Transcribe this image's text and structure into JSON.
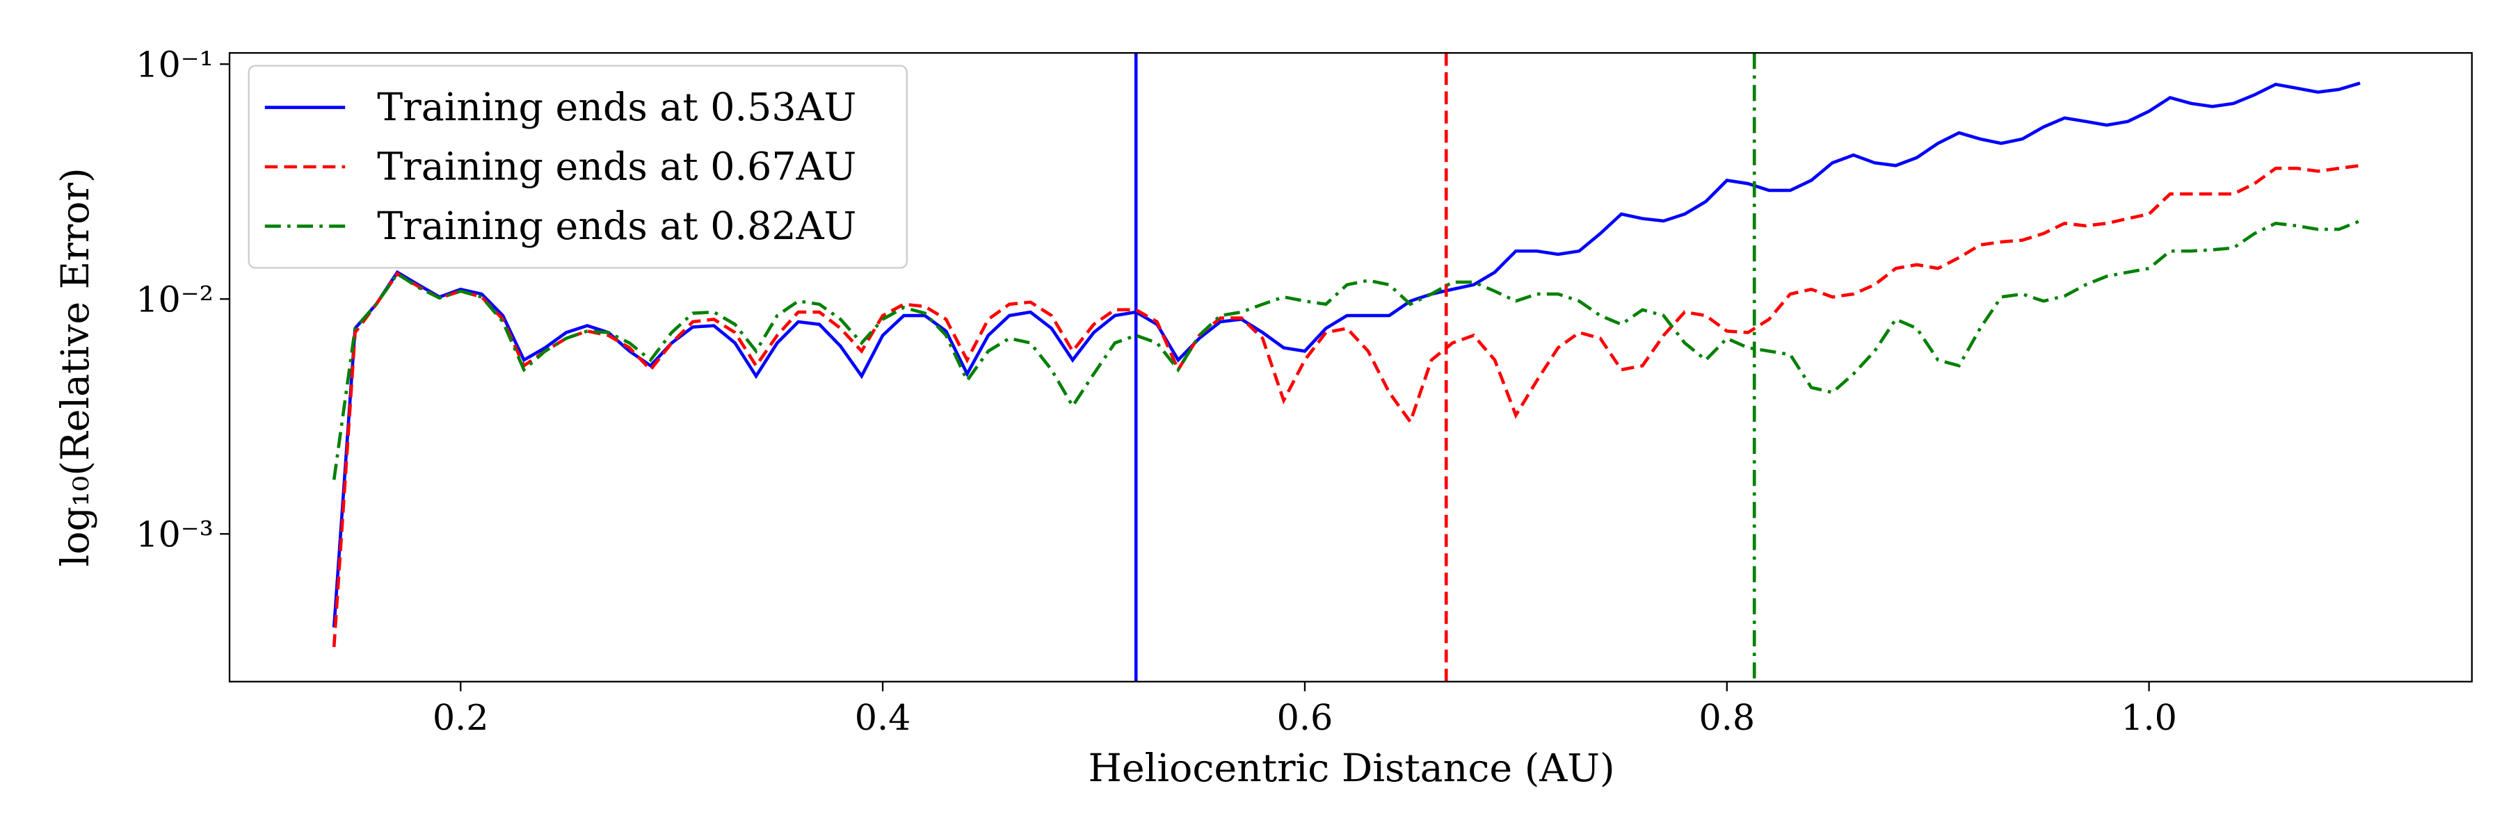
{
  "chart_data": {
    "type": "line",
    "xlabel": "Heliocentric Distance (AU)",
    "ylabel": "log₁₀(Relative Error)",
    "log_y": true,
    "legend": "upper left",
    "xlim": [
      0.0905,
      1.153
    ],
    "ylim": [
      0.000235,
      0.1116
    ],
    "xticks": [
      0.2,
      0.4,
      0.6,
      0.8,
      {
        "value": 1,
        "label": "1.0"
      }
    ],
    "yticks": [
      {
        "value": 0.001,
        "label": "10⁻³"
      },
      {
        "value": 0.01,
        "label": "10⁻²"
      },
      {
        "value": 0.1,
        "label": "10⁻¹"
      }
    ],
    "x": [
      0.14,
      0.15,
      0.16,
      0.17,
      0.18,
      0.19,
      0.2,
      0.21,
      0.22,
      0.23,
      0.24,
      0.25,
      0.26,
      0.27,
      0.28,
      0.29,
      0.3,
      0.31,
      0.32,
      0.33,
      0.34,
      0.35,
      0.36,
      0.37,
      0.38,
      0.39,
      0.4,
      0.41,
      0.42,
      0.43,
      0.44,
      0.45,
      0.46,
      0.47,
      0.48,
      0.49,
      0.5,
      0.51,
      0.52,
      0.53,
      0.54,
      0.55,
      0.56,
      0.57,
      0.58,
      0.59,
      0.6,
      0.61,
      0.62,
      0.63,
      0.64,
      0.65,
      0.66,
      0.67,
      0.68,
      0.69,
      0.7,
      0.71,
      0.72,
      0.73,
      0.74,
      0.75,
      0.76,
      0.77,
      0.78,
      0.79,
      0.8,
      0.81,
      0.82,
      0.83,
      0.84,
      0.85,
      0.86,
      0.87,
      0.88,
      0.89,
      0.9,
      0.91,
      0.92,
      0.93,
      0.94,
      0.95,
      0.96,
      0.97,
      0.98,
      0.99,
      1.0,
      1.01,
      1.02,
      1.03,
      1.04,
      1.05,
      1.06,
      1.07,
      1.08,
      1.09,
      1.1
    ],
    "series": [
      {
        "name": "Training ends at 0.53AU",
        "color": "#0000ff",
        "dash": "solid",
        "vline": 0.52,
        "values": [
          0.0004,
          0.0075,
          0.0095,
          0.013,
          0.0115,
          0.0102,
          0.011,
          0.0105,
          0.0085,
          0.0055,
          0.0062,
          0.0072,
          0.0077,
          0.0072,
          0.006,
          0.0052,
          0.0065,
          0.0076,
          0.0077,
          0.0065,
          0.0047,
          0.0065,
          0.008,
          0.0078,
          0.0063,
          0.0047,
          0.007,
          0.0085,
          0.0085,
          0.0073,
          0.0048,
          0.007,
          0.0085,
          0.0088,
          0.0075,
          0.0055,
          0.0072,
          0.0085,
          0.0088,
          0.0078,
          0.0055,
          0.0068,
          0.008,
          0.0082,
          0.0072,
          0.0062,
          0.006,
          0.0075,
          0.0085,
          0.0085,
          0.0085,
          0.0098,
          0.0105,
          0.011,
          0.0115,
          0.013,
          0.016,
          0.016,
          0.0155,
          0.016,
          0.019,
          0.023,
          0.022,
          0.0215,
          0.023,
          0.026,
          0.032,
          0.031,
          0.029,
          0.029,
          0.032,
          0.038,
          0.041,
          0.038,
          0.037,
          0.04,
          0.046,
          0.051,
          0.048,
          0.046,
          0.048,
          0.054,
          0.059,
          0.057,
          0.055,
          0.057,
          0.063,
          0.072,
          0.068,
          0.066,
          0.068,
          0.074,
          0.082,
          0.079,
          0.076,
          0.078,
          0.083
        ]
      },
      {
        "name": "Training ends at 0.67AU",
        "color": "#ff0000",
        "dash": "dashed",
        "vline": 0.667,
        "values": [
          0.00033,
          0.0072,
          0.0095,
          0.0128,
          0.0113,
          0.0101,
          0.0108,
          0.0102,
          0.0082,
          0.0052,
          0.006,
          0.0068,
          0.0073,
          0.007,
          0.0062,
          0.005,
          0.0065,
          0.008,
          0.0082,
          0.0072,
          0.0052,
          0.007,
          0.0088,
          0.0088,
          0.0075,
          0.006,
          0.0085,
          0.0095,
          0.0093,
          0.0082,
          0.0055,
          0.0082,
          0.0095,
          0.0097,
          0.0085,
          0.006,
          0.0078,
          0.009,
          0.009,
          0.008,
          0.005,
          0.007,
          0.0083,
          0.0083,
          0.0068,
          0.0037,
          0.0055,
          0.0072,
          0.0075,
          0.006,
          0.004,
          0.003,
          0.0055,
          0.0065,
          0.007,
          0.0055,
          0.0032,
          0.0045,
          0.0062,
          0.0072,
          0.0068,
          0.005,
          0.0052,
          0.007,
          0.0088,
          0.0085,
          0.0073,
          0.0072,
          0.0082,
          0.0105,
          0.011,
          0.0102,
          0.0105,
          0.0115,
          0.0135,
          0.014,
          0.0135,
          0.015,
          0.017,
          0.0175,
          0.0178,
          0.019,
          0.021,
          0.0205,
          0.021,
          0.022,
          0.023,
          0.028,
          0.028,
          0.028,
          0.028,
          0.031,
          0.036,
          0.036,
          0.035,
          0.036,
          0.037
        ]
      },
      {
        "name": "Training ends at 0.82AU",
        "color": "#008000",
        "dash": "dashdot",
        "vline": 0.813,
        "values": [
          0.0017,
          0.0075,
          0.0095,
          0.0128,
          0.0112,
          0.0101,
          0.0108,
          0.0102,
          0.008,
          0.005,
          0.006,
          0.0068,
          0.0073,
          0.0072,
          0.0065,
          0.0055,
          0.0072,
          0.0087,
          0.0088,
          0.0078,
          0.006,
          0.0085,
          0.0098,
          0.0095,
          0.0082,
          0.0065,
          0.0082,
          0.0092,
          0.0087,
          0.007,
          0.0045,
          0.006,
          0.0068,
          0.0065,
          0.005,
          0.0035,
          0.0048,
          0.0065,
          0.007,
          0.0065,
          0.005,
          0.007,
          0.0085,
          0.0088,
          0.0095,
          0.0102,
          0.0098,
          0.0095,
          0.0115,
          0.012,
          0.0115,
          0.0095,
          0.0105,
          0.0118,
          0.0118,
          0.0108,
          0.0098,
          0.0105,
          0.0105,
          0.0098,
          0.0085,
          0.0078,
          0.009,
          0.0085,
          0.0065,
          0.0055,
          0.0068,
          0.0062,
          0.006,
          0.0058,
          0.0042,
          0.004,
          0.0048,
          0.006,
          0.0082,
          0.0075,
          0.0055,
          0.0052,
          0.0075,
          0.0102,
          0.0105,
          0.0098,
          0.0103,
          0.0115,
          0.0125,
          0.013,
          0.0135,
          0.016,
          0.016,
          0.0162,
          0.0165,
          0.019,
          0.021,
          0.0205,
          0.0198,
          0.0198,
          0.0215
        ]
      }
    ]
  }
}
